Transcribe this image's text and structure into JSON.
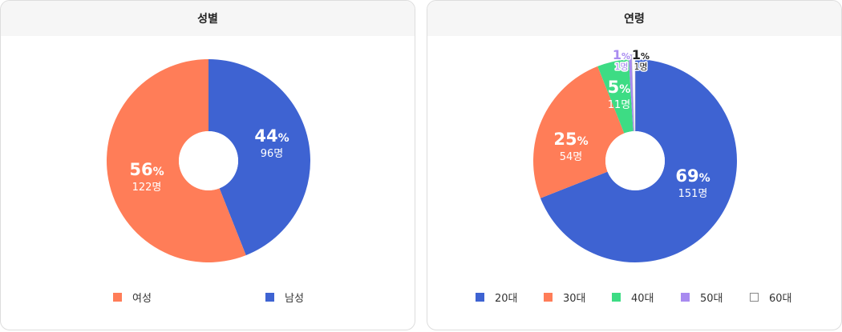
{
  "chart_data": [
    {
      "type": "pie",
      "title": "성별",
      "segments": [
        {
          "name": "남성",
          "percent": 44,
          "percent_label": "44",
          "percent_sign": "%",
          "count_label": "96명",
          "color": "#3e63d2"
        },
        {
          "name": "여성",
          "percent": 56,
          "percent_label": "56",
          "percent_sign": "%",
          "count_label": "122명",
          "color": "#ff7d58"
        }
      ],
      "legend": [
        {
          "name": "여성",
          "color": "#ff7d58"
        },
        {
          "name": "남성",
          "color": "#3e63d2"
        }
      ]
    },
    {
      "type": "pie",
      "title": "연령",
      "segments": [
        {
          "name": "20대",
          "percent": 69,
          "percent_label": "69",
          "percent_sign": "%",
          "count_label": "151명",
          "color": "#3e63d2"
        },
        {
          "name": "30대",
          "percent": 25,
          "percent_label": "25",
          "percent_sign": "%",
          "count_label": "54명",
          "color": "#ff7d58"
        },
        {
          "name": "40대",
          "percent": 5,
          "percent_label": "5",
          "percent_sign": "%",
          "count_label": "11명",
          "color": "#3ddc84"
        },
        {
          "name": "50대",
          "percent": 0.5,
          "percent_label": "1",
          "percent_sign": "%",
          "count_label": "1명",
          "color": "#a88bf0"
        },
        {
          "name": "60대",
          "percent": 0.5,
          "percent_label": "1",
          "percent_sign": "%",
          "count_label": "1명",
          "color": "#ffffff"
        }
      ],
      "legend": [
        {
          "name": "20대",
          "color": "#3e63d2"
        },
        {
          "name": "30대",
          "color": "#ff7d58"
        },
        {
          "name": "40대",
          "color": "#3ddc84"
        },
        {
          "name": "50대",
          "color": "#a88bf0"
        },
        {
          "name": "60대",
          "color": "#ffffff"
        }
      ]
    }
  ]
}
